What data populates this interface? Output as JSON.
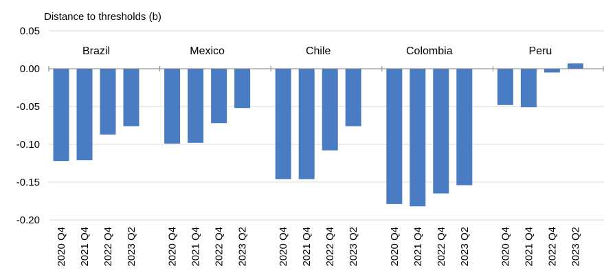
{
  "chart_data": {
    "type": "bar",
    "ylabel": "Distance to thresholds (b)",
    "ylim": [
      -0.2,
      0.05
    ],
    "yticks": [
      "0.05",
      "0.00",
      "-0.05",
      "-0.10",
      "-0.15",
      "-0.20"
    ],
    "ytick_values": [
      0.05,
      0.0,
      -0.05,
      -0.1,
      -0.15,
      -0.2
    ],
    "grid": true,
    "bar_color": "#4a7cc3",
    "grid_color": "#d9d9d9",
    "groups": [
      {
        "name": "Brazil",
        "categories": [
          "2020 Q4",
          "2021 Q4",
          "2022 Q4",
          "2023 Q2"
        ],
        "values": [
          -0.122,
          -0.121,
          -0.087,
          -0.076
        ]
      },
      {
        "name": "Mexico",
        "categories": [
          "2020 Q4",
          "2021 Q4",
          "2022 Q4",
          "2023 Q2"
        ],
        "values": [
          -0.099,
          -0.098,
          -0.072,
          -0.052
        ]
      },
      {
        "name": "Chile",
        "categories": [
          "2020 Q4",
          "2021 Q4",
          "2022 Q4",
          "2023 Q2"
        ],
        "values": [
          -0.146,
          -0.146,
          -0.108,
          -0.076
        ]
      },
      {
        "name": "Colombia",
        "categories": [
          "2020 Q4",
          "2021 Q4",
          "2022 Q4",
          "2023 Q2"
        ],
        "values": [
          -0.179,
          -0.182,
          -0.165,
          -0.154
        ]
      },
      {
        "name": "Peru",
        "categories": [
          "2020 Q4",
          "2021 Q4",
          "2022 Q4",
          "2023 Q2"
        ],
        "values": [
          -0.048,
          -0.051,
          -0.005,
          0.007
        ]
      }
    ]
  }
}
